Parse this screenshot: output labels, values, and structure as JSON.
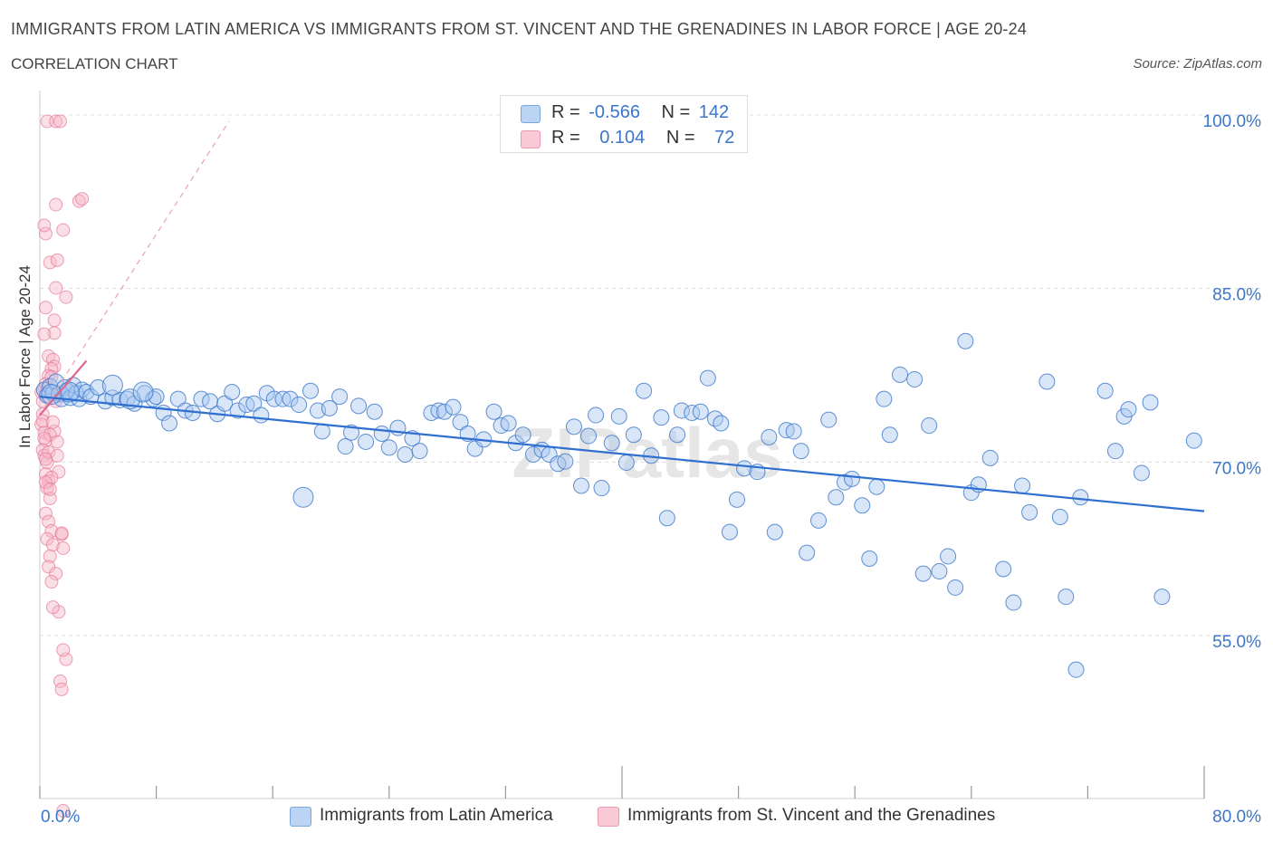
{
  "title": "IMMIGRANTS FROM LATIN AMERICA VS IMMIGRANTS FROM ST. VINCENT AND THE GRENADINES IN LABOR FORCE | AGE 20-24",
  "subtitle": "CORRELATION CHART",
  "source": "Source: ZipAtlas.com",
  "watermark": "ZIPatlas",
  "legend_top": {
    "rows": [
      {
        "r_label": "R =",
        "r_value": "-0.566",
        "n_label": "N =",
        "n_value": "142",
        "color": "#a9c8f0"
      },
      {
        "r_label": "R =",
        "r_value": "0.104",
        "n_label": "N =",
        "n_value": "72",
        "color": "#f6b7c8"
      }
    ]
  },
  "chart_data": {
    "type": "scatter",
    "xlabel": "",
    "ylabel": "In Labor Force | Age 20-24",
    "x_ticks": [
      "0.0%",
      "80.0%"
    ],
    "y_ticks": [
      "100.0%",
      "85.0%",
      "70.0%",
      "55.0%"
    ],
    "xlim": [
      0,
      80
    ],
    "ylim": [
      40,
      101.5
    ],
    "grid": true,
    "legend_position": "bottom",
    "series": [
      {
        "name": "Immigrants from Latin America",
        "color": "#3a76c9",
        "fill": "#a9c8f0",
        "trend": {
          "x0": 0,
          "y0": 76.2,
          "x1": 80,
          "y1": 66.3
        },
        "points": [
          [
            0.3,
            76.8
          ],
          [
            0.5,
            76.3
          ],
          [
            0.7,
            77.1
          ],
          [
            0.9,
            76.5
          ],
          [
            1.1,
            77.5
          ],
          [
            1.3,
            76.4
          ],
          [
            1.5,
            76.0
          ],
          [
            1.7,
            77.0
          ],
          [
            1.9,
            76.7
          ],
          [
            2.1,
            76.1
          ],
          [
            2.3,
            77.2
          ],
          [
            2.5,
            76.5
          ],
          [
            2.7,
            76.0
          ],
          [
            2.9,
            76.8
          ],
          [
            3.2,
            76.6
          ],
          [
            3.5,
            76.2
          ],
          [
            4.0,
            77.0
          ],
          [
            4.5,
            75.8
          ],
          [
            5.0,
            76.1
          ],
          [
            5.5,
            75.9
          ],
          [
            6.0,
            76.0
          ],
          [
            6.5,
            75.6
          ],
          [
            7.2,
            76.5
          ],
          [
            7.8,
            76.0
          ],
          [
            8.5,
            74.8
          ],
          [
            8.9,
            73.9
          ],
          [
            9.5,
            76.0
          ],
          [
            10.0,
            75.0
          ],
          [
            10.5,
            74.8
          ],
          [
            11.1,
            76.0
          ],
          [
            11.7,
            75.8
          ],
          [
            12.2,
            74.7
          ],
          [
            12.7,
            75.6
          ],
          [
            13.2,
            76.6
          ],
          [
            13.6,
            75.0
          ],
          [
            14.2,
            75.5
          ],
          [
            14.7,
            75.6
          ],
          [
            15.2,
            74.6
          ],
          [
            15.6,
            76.5
          ],
          [
            16.1,
            76.0
          ],
          [
            16.7,
            76.0
          ],
          [
            17.2,
            76.0
          ],
          [
            17.8,
            75.5
          ],
          [
            18.6,
            76.7
          ],
          [
            19.1,
            75.0
          ],
          [
            19.4,
            73.2
          ],
          [
            19.9,
            75.2
          ],
          [
            20.6,
            76.2
          ],
          [
            21.0,
            71.9
          ],
          [
            21.4,
            73.1
          ],
          [
            21.9,
            75.4
          ],
          [
            22.4,
            72.3
          ],
          [
            23.0,
            74.9
          ],
          [
            23.5,
            73.0
          ],
          [
            24.0,
            71.8
          ],
          [
            24.6,
            73.5
          ],
          [
            25.1,
            71.2
          ],
          [
            25.6,
            72.6
          ],
          [
            26.1,
            71.5
          ],
          [
            26.9,
            74.8
          ],
          [
            27.4,
            75.0
          ],
          [
            27.8,
            74.9
          ],
          [
            28.4,
            75.3
          ],
          [
            28.9,
            74.0
          ],
          [
            29.4,
            73.0
          ],
          [
            29.9,
            71.7
          ],
          [
            30.5,
            72.5
          ],
          [
            31.2,
            74.9
          ],
          [
            31.7,
            73.7
          ],
          [
            32.2,
            73.9
          ],
          [
            32.7,
            72.2
          ],
          [
            33.2,
            72.9
          ],
          [
            33.9,
            71.2
          ],
          [
            34.5,
            71.6
          ],
          [
            35.0,
            71.2
          ],
          [
            35.6,
            70.4
          ],
          [
            36.1,
            70.6
          ],
          [
            36.7,
            73.6
          ],
          [
            37.2,
            68.5
          ],
          [
            37.7,
            72.8
          ],
          [
            38.2,
            74.6
          ],
          [
            38.6,
            68.3
          ],
          [
            39.3,
            72.2
          ],
          [
            39.8,
            74.5
          ],
          [
            40.3,
            70.5
          ],
          [
            40.8,
            72.9
          ],
          [
            41.5,
            76.7
          ],
          [
            42.0,
            71.1
          ],
          [
            42.7,
            74.4
          ],
          [
            43.1,
            65.7
          ],
          [
            43.8,
            72.9
          ],
          [
            44.1,
            75.0
          ],
          [
            44.8,
            74.8
          ],
          [
            45.4,
            74.9
          ],
          [
            45.9,
            77.8
          ],
          [
            46.4,
            74.3
          ],
          [
            46.8,
            73.9
          ],
          [
            47.4,
            64.5
          ],
          [
            47.9,
            67.3
          ],
          [
            48.4,
            70.0
          ],
          [
            49.3,
            69.7
          ],
          [
            50.1,
            72.7
          ],
          [
            50.5,
            64.5
          ],
          [
            51.3,
            73.3
          ],
          [
            51.8,
            73.2
          ],
          [
            52.3,
            71.5
          ],
          [
            52.7,
            62.7
          ],
          [
            53.5,
            65.5
          ],
          [
            54.2,
            74.2
          ],
          [
            54.7,
            67.5
          ],
          [
            55.3,
            68.8
          ],
          [
            55.8,
            69.1
          ],
          [
            56.5,
            66.8
          ],
          [
            57.0,
            62.2
          ],
          [
            57.5,
            68.4
          ],
          [
            58.0,
            76.0
          ],
          [
            58.4,
            72.9
          ],
          [
            59.1,
            78.1
          ],
          [
            60.1,
            77.7
          ],
          [
            60.7,
            60.9
          ],
          [
            61.1,
            73.7
          ],
          [
            61.8,
            61.1
          ],
          [
            62.4,
            62.4
          ],
          [
            62.9,
            59.7
          ],
          [
            63.6,
            81.0
          ],
          [
            64.0,
            67.9
          ],
          [
            64.5,
            68.6
          ],
          [
            65.3,
            70.9
          ],
          [
            66.2,
            61.3
          ],
          [
            66.9,
            58.4
          ],
          [
            67.5,
            68.5
          ],
          [
            68.0,
            66.2
          ],
          [
            69.2,
            77.5
          ],
          [
            70.1,
            65.8
          ],
          [
            70.5,
            58.9
          ],
          [
            71.2,
            52.6
          ],
          [
            71.5,
            67.5
          ],
          [
            73.2,
            76.7
          ],
          [
            73.9,
            71.5
          ],
          [
            74.5,
            74.5
          ],
          [
            74.8,
            75.1
          ],
          [
            75.7,
            69.6
          ],
          [
            76.3,
            75.7
          ],
          [
            77.1,
            58.9
          ],
          [
            79.3,
            72.4
          ],
          [
            8.0,
            76.2
          ]
        ],
        "large_points": [
          [
            2.0,
            76.6
          ],
          [
            5.0,
            77.2
          ],
          [
            18.1,
            67.5
          ],
          [
            0.8,
            76.4
          ],
          [
            6.2,
            76.0
          ],
          [
            7.1,
            76.6
          ]
        ]
      },
      {
        "name": "Immigrants from St. Vincent and the Grenadines",
        "color": "#e5779a",
        "fill": "#f6b7c8",
        "trend": {
          "x0": 0,
          "y0": 74.6,
          "x1": 3.2,
          "y1": 79.3
        },
        "trend_dashed": {
          "x0": 0,
          "y0": 74.6,
          "x1": 13.0,
          "y1": 100.0
        },
        "points": [
          [
            0.1,
            76.6
          ],
          [
            0.2,
            75.8
          ],
          [
            0.3,
            76.9
          ],
          [
            0.2,
            74.7
          ],
          [
            0.1,
            73.8
          ],
          [
            0.3,
            73.1
          ],
          [
            0.4,
            72.4
          ],
          [
            0.2,
            71.6
          ],
          [
            0.3,
            71.1
          ],
          [
            0.5,
            70.5
          ],
          [
            0.4,
            69.5
          ],
          [
            0.6,
            68.9
          ],
          [
            0.5,
            68.3
          ],
          [
            0.7,
            67.4
          ],
          [
            0.4,
            66.1
          ],
          [
            0.6,
            65.4
          ],
          [
            0.8,
            64.6
          ],
          [
            0.5,
            63.9
          ],
          [
            0.9,
            63.4
          ],
          [
            0.7,
            62.4
          ],
          [
            0.6,
            61.5
          ],
          [
            1.1,
            60.9
          ],
          [
            0.8,
            60.2
          ],
          [
            1.5,
            64.3
          ],
          [
            1.6,
            63.1
          ],
          [
            1.3,
            57.6
          ],
          [
            0.9,
            58.0
          ],
          [
            1.8,
            53.5
          ],
          [
            1.6,
            54.3
          ],
          [
            1.4,
            51.6
          ],
          [
            1.5,
            50.9
          ],
          [
            0.5,
            100.0
          ],
          [
            1.1,
            100.0
          ],
          [
            1.4,
            100.0
          ],
          [
            2.7,
            93.1
          ],
          [
            2.9,
            93.3
          ],
          [
            1.1,
            92.8
          ],
          [
            0.4,
            90.3
          ],
          [
            0.3,
            91.0
          ],
          [
            1.6,
            90.6
          ],
          [
            0.7,
            87.8
          ],
          [
            1.2,
            88.0
          ],
          [
            1.1,
            85.6
          ],
          [
            1.8,
            84.8
          ],
          [
            0.4,
            83.9
          ],
          [
            1.0,
            82.8
          ],
          [
            1.0,
            81.7
          ],
          [
            0.3,
            81.6
          ],
          [
            0.6,
            79.7
          ],
          [
            0.9,
            79.4
          ],
          [
            1.0,
            78.8
          ],
          [
            0.8,
            78.6
          ],
          [
            0.6,
            78.0
          ],
          [
            0.4,
            77.3
          ],
          [
            0.8,
            77.9
          ],
          [
            0.5,
            76.9
          ],
          [
            1.1,
            75.8
          ],
          [
            0.2,
            74.1
          ],
          [
            1.0,
            73.2
          ],
          [
            0.7,
            72.9
          ],
          [
            0.3,
            72.6
          ],
          [
            1.2,
            72.3
          ],
          [
            0.6,
            71.4
          ],
          [
            1.2,
            71.1
          ],
          [
            0.4,
            70.8
          ],
          [
            1.3,
            69.7
          ],
          [
            0.8,
            69.2
          ],
          [
            0.4,
            68.8
          ],
          [
            0.7,
            68.2
          ],
          [
            1.5,
            64.4
          ],
          [
            1.6,
            40.4
          ],
          [
            0.9,
            74.0
          ]
        ]
      }
    ]
  }
}
